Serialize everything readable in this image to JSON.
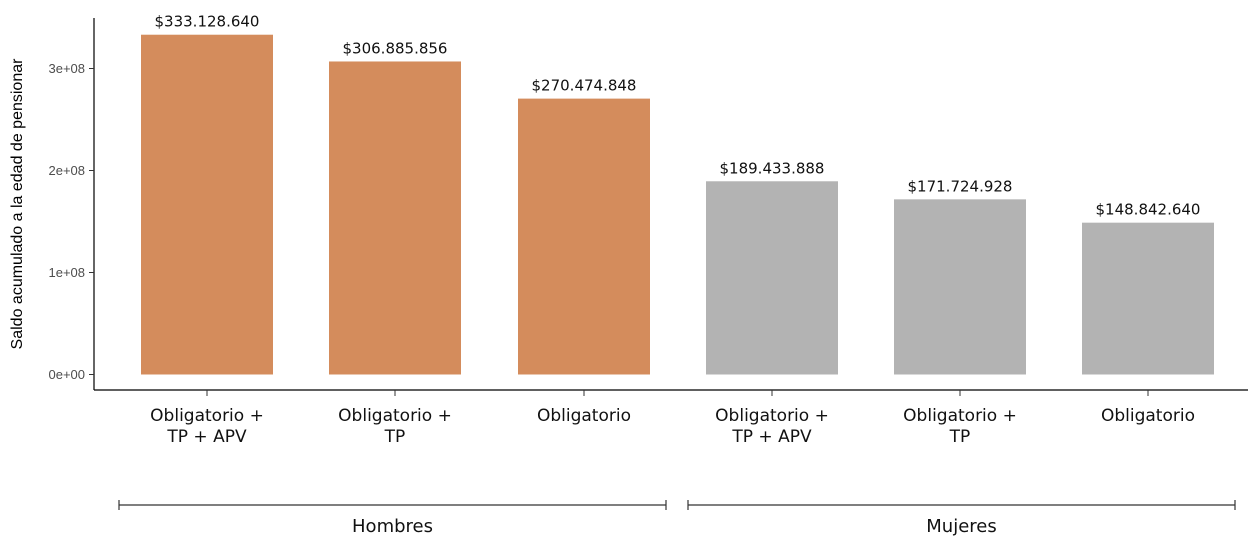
{
  "chart_data": {
    "type": "bar",
    "ylabel": "Saldo acumulado a la edad de pensionar",
    "ylim": [
      0,
      350000000
    ],
    "yticks": [
      {
        "value": 0,
        "label": "0e+00"
      },
      {
        "value": 100000000,
        "label": "1e+08"
      },
      {
        "value": 200000000,
        "label": "2e+08"
      },
      {
        "value": 300000000,
        "label": "3e+08"
      }
    ],
    "grid": false,
    "colors": {
      "Hombres": "#d48c5c",
      "Mujeres": "#b3b3b3"
    },
    "groups": [
      "Hombres",
      "Mujeres"
    ],
    "bars": [
      {
        "category": [
          "Obligatorio +",
          "TP + APV"
        ],
        "group": "Hombres",
        "value": 333128640,
        "label": "$333.128.640"
      },
      {
        "category": [
          "Obligatorio +",
          "TP"
        ],
        "group": "Hombres",
        "value": 306885856,
        "label": "$306.885.856"
      },
      {
        "category": [
          "Obligatorio"
        ],
        "group": "Hombres",
        "value": 270474848,
        "label": "$270.474.848"
      },
      {
        "category": [
          "Obligatorio +",
          "TP + APV"
        ],
        "group": "Mujeres",
        "value": 189433888,
        "label": "$189.433.888"
      },
      {
        "category": [
          "Obligatorio +",
          "TP"
        ],
        "group": "Mujeres",
        "value": 171724928,
        "label": "$171.724.928"
      },
      {
        "category": [
          "Obligatorio"
        ],
        "group": "Mujeres",
        "value": 148842640,
        "label": "$148.842.640"
      }
    ]
  }
}
